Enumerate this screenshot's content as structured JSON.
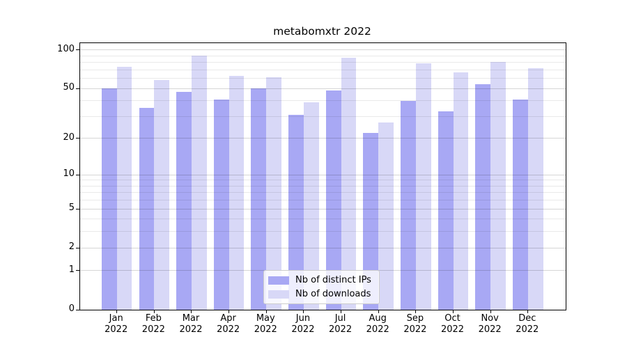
{
  "title": "metabomxtr 2022",
  "chart_data": {
    "type": "bar",
    "title": "metabomxtr 2022",
    "year_label": "2022",
    "categories": [
      "Jan",
      "Feb",
      "Mar",
      "Apr",
      "May",
      "Jun",
      "Jul",
      "Aug",
      "Sep",
      "Oct",
      "Nov",
      "Dec"
    ],
    "series": [
      {
        "name": "Nb of distinct IPs",
        "color": "#a8a8f4",
        "values": [
          50,
          35,
          47,
          41,
          50,
          31,
          48,
          22,
          40,
          33,
          54,
          41
        ]
      },
      {
        "name": "Nb of downloads",
        "color": "#d8d8f7",
        "values": [
          74,
          58,
          90,
          63,
          61,
          39,
          87,
          27,
          79,
          67,
          81,
          72
        ]
      }
    ],
    "yscale": "log1p",
    "ylim": [
      0,
      113
    ],
    "yticks": [
      100,
      50,
      20,
      10,
      5,
      2,
      1,
      0
    ],
    "minor_gridline_values": [
      90,
      80,
      70,
      60,
      40,
      30,
      9,
      8,
      7,
      6,
      4,
      3
    ],
    "major_gridline_values": [
      100,
      50,
      20,
      10,
      5,
      2,
      1
    ],
    "grid": true,
    "legend_position": "lower center",
    "legend_labels": [
      "Nb of distinct IPs",
      "Nb of downloads"
    ]
  }
}
